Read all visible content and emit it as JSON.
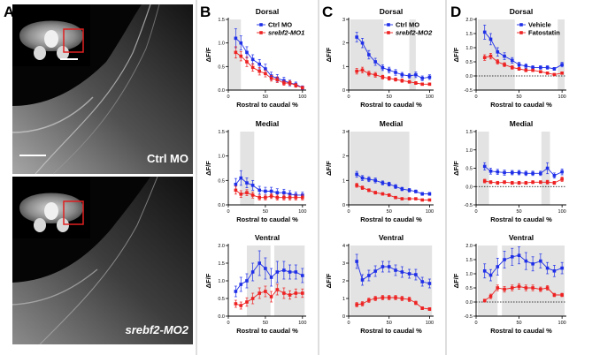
{
  "panel_labels": {
    "A": "A",
    "B": "B",
    "C": "C",
    "D": "D"
  },
  "images": {
    "top_label": "Ctrl MO",
    "bottom_label": "srebf2-MO2"
  },
  "common": {
    "ylabel": "ΔF/F",
    "xlabel": "Rostral to caudal %",
    "x_ticks": [
      0,
      50,
      100
    ]
  },
  "colors": {
    "blue": "#1f2fe8",
    "red": "#ee2222",
    "shade": "#e3e3e3"
  },
  "chart_data": [
    {
      "id": "B-dorsal",
      "type": "line",
      "title": "Dorsal",
      "xlabel": "Rostral to caudal %",
      "ylabel": "ΔF/F",
      "xlim": [
        0,
        105
      ],
      "ylim": [
        0,
        1.5
      ],
      "yticks": [
        0.0,
        0.5,
        1.0,
        1.5
      ],
      "legend": [
        "Ctrl MO",
        "srebf2-MO1"
      ],
      "shaded": [
        [
          2,
          17
        ]
      ],
      "x": [
        10,
        17,
        25,
        33,
        42,
        50,
        58,
        66,
        75,
        83,
        91,
        100
      ],
      "series": [
        {
          "name": "Ctrl MO",
          "color": "blue",
          "values": [
            1.1,
            1.0,
            0.8,
            0.65,
            0.55,
            0.45,
            0.3,
            0.25,
            0.2,
            0.15,
            0.12,
            0.05
          ],
          "err": [
            0.2,
            0.15,
            0.12,
            0.1,
            0.1,
            0.1,
            0.08,
            0.08,
            0.07,
            0.06,
            0.05,
            0.04
          ]
        },
        {
          "name": "srebf2-MO1",
          "color": "red",
          "values": [
            0.8,
            0.72,
            0.6,
            0.48,
            0.4,
            0.35,
            0.25,
            0.22,
            0.15,
            0.15,
            0.1,
            0.05
          ],
          "err": [
            0.12,
            0.1,
            0.1,
            0.08,
            0.08,
            0.07,
            0.06,
            0.06,
            0.05,
            0.05,
            0.04,
            0.03
          ]
        }
      ]
    },
    {
      "id": "B-medial",
      "type": "line",
      "title": "Medial",
      "xlabel": "Rostral to caudal %",
      "ylabel": "ΔF/F",
      "xlim": [
        0,
        105
      ],
      "ylim": [
        0,
        1.5
      ],
      "yticks": [
        0.0,
        0.5,
        1.0,
        1.5
      ],
      "legend": [],
      "shaded": [
        [
          16,
          35
        ]
      ],
      "x": [
        10,
        17,
        25,
        33,
        42,
        50,
        58,
        66,
        75,
        83,
        91,
        100
      ],
      "series": [
        {
          "name": "Ctrl MO",
          "color": "blue",
          "values": [
            0.42,
            0.55,
            0.45,
            0.4,
            0.3,
            0.28,
            0.28,
            0.25,
            0.25,
            0.22,
            0.2,
            0.2
          ],
          "err": [
            0.12,
            0.15,
            0.1,
            0.1,
            0.08,
            0.08,
            0.08,
            0.08,
            0.07,
            0.07,
            0.06,
            0.06
          ]
        },
        {
          "name": "srebf2-MO1",
          "color": "red",
          "values": [
            0.3,
            0.22,
            0.25,
            0.2,
            0.15,
            0.15,
            0.18,
            0.15,
            0.15,
            0.15,
            0.15,
            0.15
          ],
          "err": [
            0.08,
            0.07,
            0.06,
            0.06,
            0.05,
            0.05,
            0.05,
            0.05,
            0.05,
            0.05,
            0.05,
            0.05
          ]
        }
      ]
    },
    {
      "id": "B-ventral",
      "type": "line",
      "title": "Ventral",
      "xlabel": "Rostral to caudal %",
      "ylabel": "ΔF/F",
      "xlim": [
        0,
        105
      ],
      "ylim": [
        0,
        2.0
      ],
      "yticks": [
        0.0,
        0.5,
        1.0,
        1.5,
        2.0
      ],
      "legend": [],
      "shaded": [
        [
          25,
          57
        ],
        [
          62,
          103
        ]
      ],
      "x": [
        10,
        17,
        25,
        33,
        42,
        50,
        58,
        66,
        75,
        83,
        91,
        100
      ],
      "series": [
        {
          "name": "Ctrl MO",
          "color": "blue",
          "values": [
            0.7,
            0.9,
            1.0,
            1.25,
            1.5,
            1.35,
            1.1,
            1.25,
            1.3,
            1.25,
            1.25,
            1.15
          ],
          "err": [
            0.15,
            0.2,
            0.2,
            0.25,
            0.35,
            0.3,
            0.25,
            0.3,
            0.25,
            0.2,
            0.2,
            0.2
          ]
        },
        {
          "name": "srebf2-MO1",
          "color": "red",
          "values": [
            0.35,
            0.3,
            0.4,
            0.5,
            0.65,
            0.7,
            0.55,
            0.75,
            0.65,
            0.6,
            0.65,
            0.65
          ],
          "err": [
            0.1,
            0.1,
            0.12,
            0.15,
            0.15,
            0.15,
            0.15,
            0.15,
            0.15,
            0.12,
            0.12,
            0.12
          ]
        }
      ]
    },
    {
      "id": "C-dorsal",
      "type": "line",
      "title": "Dorsal",
      "xlabel": "Rostral to caudal %",
      "ylabel": "ΔF/F",
      "xlim": [
        0,
        105
      ],
      "ylim": [
        0,
        3
      ],
      "yticks": [
        0,
        1,
        2,
        3
      ],
      "legend": [
        "Ctrl MO",
        "srebf2-MO2"
      ],
      "shaded": [
        [
          2,
          43
        ],
        [
          75,
          83
        ]
      ],
      "x": [
        10,
        17,
        25,
        33,
        42,
        50,
        58,
        66,
        75,
        83,
        91,
        100
      ],
      "series": [
        {
          "name": "Ctrl MO",
          "color": "blue",
          "values": [
            2.25,
            2.0,
            1.5,
            1.2,
            0.95,
            0.85,
            0.75,
            0.65,
            0.6,
            0.65,
            0.5,
            0.55
          ],
          "err": [
            0.2,
            0.2,
            0.18,
            0.15,
            0.12,
            0.12,
            0.12,
            0.1,
            0.1,
            0.12,
            0.1,
            0.1
          ]
        },
        {
          "name": "srebf2-MO2",
          "color": "red",
          "values": [
            0.8,
            0.85,
            0.7,
            0.65,
            0.55,
            0.5,
            0.45,
            0.4,
            0.35,
            0.3,
            0.25,
            0.25
          ],
          "err": [
            0.12,
            0.12,
            0.1,
            0.1,
            0.08,
            0.08,
            0.07,
            0.07,
            0.06,
            0.06,
            0.05,
            0.05
          ]
        }
      ]
    },
    {
      "id": "C-medial",
      "type": "line",
      "title": "Medial",
      "xlabel": "Rostral to caudal %",
      "ylabel": "ΔF/F",
      "xlim": [
        0,
        105
      ],
      "ylim": [
        0,
        3
      ],
      "yticks": [
        0,
        1,
        2,
        3
      ],
      "legend": [],
      "shaded": [
        [
          2,
          75
        ]
      ],
      "x": [
        10,
        17,
        25,
        33,
        42,
        50,
        58,
        66,
        75,
        83,
        91,
        100
      ],
      "series": [
        {
          "name": "Ctrl MO",
          "color": "blue",
          "values": [
            1.25,
            1.1,
            1.05,
            1.0,
            0.9,
            0.85,
            0.75,
            0.65,
            0.6,
            0.55,
            0.45,
            0.45
          ],
          "err": [
            0.12,
            0.1,
            0.1,
            0.1,
            0.08,
            0.08,
            0.08,
            0.07,
            0.07,
            0.06,
            0.06,
            0.06
          ]
        },
        {
          "name": "srebf2-MO2",
          "color": "red",
          "values": [
            0.8,
            0.7,
            0.6,
            0.5,
            0.45,
            0.4,
            0.3,
            0.25,
            0.25,
            0.25,
            0.2,
            0.2
          ],
          "err": [
            0.08,
            0.07,
            0.06,
            0.06,
            0.05,
            0.05,
            0.05,
            0.04,
            0.04,
            0.04,
            0.04,
            0.04
          ]
        }
      ]
    },
    {
      "id": "C-ventral",
      "type": "line",
      "title": "Ventral",
      "xlabel": "Rostral to caudal %",
      "ylabel": "ΔF/F",
      "xlim": [
        0,
        105
      ],
      "ylim": [
        0,
        4
      ],
      "yticks": [
        0,
        1,
        2,
        3,
        4
      ],
      "legend": [],
      "shaded": [
        [
          2,
          103
        ]
      ],
      "x": [
        10,
        17,
        25,
        33,
        42,
        50,
        58,
        66,
        75,
        83,
        91,
        100
      ],
      "series": [
        {
          "name": "Ctrl MO",
          "color": "blue",
          "values": [
            3.1,
            2.05,
            2.3,
            2.55,
            2.8,
            2.8,
            2.6,
            2.5,
            2.4,
            2.35,
            1.95,
            1.85
          ],
          "err": [
            0.4,
            0.3,
            0.3,
            0.3,
            0.3,
            0.3,
            0.3,
            0.3,
            0.25,
            0.3,
            0.25,
            0.25
          ]
        },
        {
          "name": "srebf2-MO2",
          "color": "red",
          "values": [
            0.65,
            0.7,
            0.9,
            1.0,
            1.05,
            1.05,
            1.05,
            1.0,
            0.95,
            0.75,
            0.45,
            0.4
          ],
          "err": [
            0.12,
            0.12,
            0.12,
            0.12,
            0.12,
            0.12,
            0.12,
            0.12,
            0.12,
            0.1,
            0.08,
            0.08
          ]
        }
      ]
    },
    {
      "id": "D-dorsal",
      "type": "line",
      "title": "Dorsal",
      "xlabel": "Rostral to caudal %",
      "ylabel": "ΔF/F",
      "xlim": [
        0,
        105
      ],
      "ylim": [
        -0.5,
        2.0
      ],
      "yticks": [
        -0.5,
        0.0,
        0.5,
        1.0,
        1.5,
        2.0
      ],
      "legend": [
        "Vehicle",
        "Fatostatin"
      ],
      "shaded": [
        [
          2,
          45
        ],
        [
          95,
          103
        ]
      ],
      "x": [
        10,
        17,
        25,
        33,
        42,
        50,
        58,
        66,
        75,
        83,
        91,
        100
      ],
      "series": [
        {
          "name": "Vehicle",
          "color": "blue",
          "values": [
            1.55,
            1.3,
            0.85,
            0.7,
            0.55,
            0.4,
            0.35,
            0.3,
            0.3,
            0.3,
            0.25,
            0.4
          ],
          "err": [
            0.25,
            0.2,
            0.15,
            0.12,
            0.1,
            0.08,
            0.08,
            0.06,
            0.06,
            0.06,
            0.05,
            0.08
          ]
        },
        {
          "name": "Fatostatin",
          "color": "red",
          "values": [
            0.65,
            0.7,
            0.5,
            0.4,
            0.3,
            0.25,
            0.2,
            0.2,
            0.15,
            0.1,
            0.05,
            0.1
          ],
          "err": [
            0.1,
            0.1,
            0.08,
            0.07,
            0.06,
            0.05,
            0.05,
            0.04,
            0.04,
            0.04,
            0.03,
            0.04
          ]
        }
      ]
    },
    {
      "id": "D-medial",
      "type": "line",
      "title": "Medial",
      "xlabel": "Rostral to caudal %",
      "ylabel": "ΔF/F",
      "xlim": [
        0,
        105
      ],
      "ylim": [
        -0.5,
        1.5
      ],
      "yticks": [
        -0.5,
        0.0,
        0.5,
        1.0,
        1.5
      ],
      "legend": [],
      "shaded": [
        [
          2,
          15
        ],
        [
          76,
          86
        ]
      ],
      "x": [
        10,
        17,
        25,
        33,
        42,
        50,
        58,
        66,
        75,
        83,
        91,
        100
      ],
      "series": [
        {
          "name": "Vehicle",
          "color": "blue",
          "values": [
            0.55,
            0.42,
            0.4,
            0.38,
            0.38,
            0.38,
            0.36,
            0.36,
            0.36,
            0.5,
            0.3,
            0.4
          ],
          "err": [
            0.1,
            0.08,
            0.07,
            0.07,
            0.06,
            0.06,
            0.06,
            0.06,
            0.06,
            0.15,
            0.07,
            0.08
          ]
        },
        {
          "name": "Fatostatin",
          "color": "red",
          "values": [
            0.15,
            0.12,
            0.1,
            0.12,
            0.1,
            0.1,
            0.1,
            0.12,
            0.12,
            0.12,
            0.1,
            0.2
          ],
          "err": [
            0.05,
            0.04,
            0.04,
            0.04,
            0.04,
            0.04,
            0.04,
            0.04,
            0.04,
            0.05,
            0.04,
            0.06
          ]
        }
      ]
    },
    {
      "id": "D-ventral",
      "type": "line",
      "title": "Ventral",
      "xlabel": "Rostral to caudal %",
      "ylabel": "ΔF/F",
      "xlim": [
        0,
        105
      ],
      "ylim": [
        -0.5,
        2.0
      ],
      "yticks": [
        -0.5,
        0.0,
        0.5,
        1.0,
        1.5,
        2.0
      ],
      "legend": [],
      "shaded": [
        [
          2,
          25
        ],
        [
          30,
          103
        ]
      ],
      "x": [
        10,
        17,
        25,
        33,
        42,
        50,
        58,
        66,
        75,
        83,
        91,
        100
      ],
      "series": [
        {
          "name": "Vehicle",
          "color": "blue",
          "values": [
            1.1,
            0.95,
            1.25,
            1.5,
            1.6,
            1.65,
            1.45,
            1.35,
            1.45,
            1.2,
            1.1,
            1.2
          ],
          "err": [
            0.25,
            0.2,
            0.3,
            0.3,
            0.3,
            0.3,
            0.3,
            0.25,
            0.25,
            0.2,
            0.2,
            0.2
          ]
        },
        {
          "name": "Fatostatin",
          "color": "red",
          "values": [
            0.05,
            0.2,
            0.5,
            0.45,
            0.5,
            0.55,
            0.5,
            0.5,
            0.45,
            0.5,
            0.25,
            0.25
          ],
          "err": [
            0.05,
            0.08,
            0.1,
            0.1,
            0.1,
            0.1,
            0.1,
            0.1,
            0.08,
            0.08,
            0.06,
            0.06
          ]
        }
      ]
    }
  ]
}
